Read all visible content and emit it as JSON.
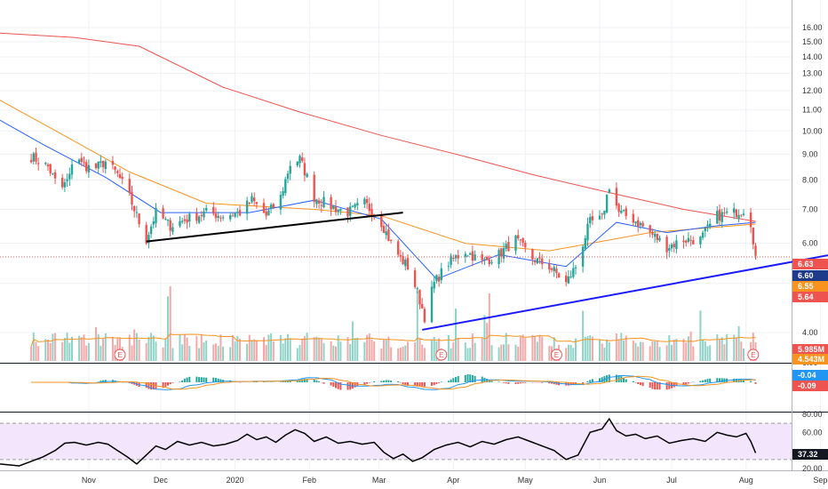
{
  "chart_data": [
    {
      "type": "candlestick",
      "panel": "price",
      "yscale": "log",
      "ylim": [
        3.6,
        16.8
      ],
      "y_ticks": [
        "16.00",
        "15.00",
        "14.00",
        "13.00",
        "12.00",
        "11.00",
        "10.00",
        "9.00",
        "8.00",
        "7.00",
        "6.00",
        "5.00",
        "4.00"
      ],
      "x_ticks": [
        "Nov",
        "Dec",
        "2020",
        "Feb",
        "Mar",
        "Apr",
        "May",
        "Jun",
        "Jul",
        "Aug",
        "Sep"
      ],
      "grid": true,
      "close_trajectory": [
        [
          "2019-10-08",
          8.9
        ],
        [
          "2019-10-15",
          8.5
        ],
        [
          "2019-10-20",
          7.6
        ],
        [
          "2019-10-24",
          8.1
        ],
        [
          "2019-10-26",
          9.3
        ],
        [
          "2019-10-29",
          8.6
        ],
        [
          "2019-11-03",
          8.4
        ],
        [
          "2019-11-08",
          8.7
        ],
        [
          "2019-11-13",
          8.2
        ],
        [
          "2019-11-18",
          7.4
        ],
        [
          "2019-11-22",
          6.6
        ],
        [
          "2019-11-25",
          6.1
        ],
        [
          "2019-11-29",
          6.9
        ],
        [
          "2019-12-05",
          6.5
        ],
        [
          "2019-12-12",
          6.7
        ],
        [
          "2019-12-20",
          6.9
        ],
        [
          "2019-12-27",
          6.8
        ],
        [
          "2020-01-03",
          6.9
        ],
        [
          "2020-01-08",
          7.3
        ],
        [
          "2020-01-14",
          6.8
        ],
        [
          "2020-01-20",
          7.4
        ],
        [
          "2020-01-24",
          8.6
        ],
        [
          "2020-01-28",
          8.8
        ],
        [
          "2020-02-03",
          7.4
        ],
        [
          "2020-02-10",
          7.1
        ],
        [
          "2020-02-17",
          6.9
        ],
        [
          "2020-02-24",
          7.2
        ],
        [
          "2020-03-02",
          6.6
        ],
        [
          "2020-03-06",
          6.0
        ],
        [
          "2020-03-10",
          5.6
        ],
        [
          "2020-03-13",
          5.4
        ],
        [
          "2020-03-17",
          4.8
        ],
        [
          "2020-03-20",
          4.3
        ],
        [
          "2020-03-24",
          5.0
        ],
        [
          "2020-03-30",
          5.5
        ],
        [
          "2020-04-06",
          5.8
        ],
        [
          "2020-04-13",
          5.5
        ],
        [
          "2020-04-20",
          5.7
        ],
        [
          "2020-04-27",
          6.1
        ],
        [
          "2020-05-04",
          5.6
        ],
        [
          "2020-05-11",
          5.4
        ],
        [
          "2020-05-18",
          5.0
        ],
        [
          "2020-05-22",
          5.4
        ],
        [
          "2020-05-28",
          6.6
        ],
        [
          "2020-06-02",
          6.7
        ],
        [
          "2020-06-05",
          7.8
        ],
        [
          "2020-06-09",
          6.9
        ],
        [
          "2020-06-15",
          6.7
        ],
        [
          "2020-06-22",
          6.3
        ],
        [
          "2020-06-29",
          5.9
        ],
        [
          "2020-07-06",
          6.1
        ],
        [
          "2020-07-13",
          6.1
        ],
        [
          "2020-07-20",
          6.8
        ],
        [
          "2020-07-27",
          6.9
        ],
        [
          "2020-07-31",
          7.0
        ],
        [
          "2020-08-03",
          6.6
        ],
        [
          "2020-08-05",
          5.64
        ]
      ],
      "moving_averages": [
        {
          "color": "#ef5350",
          "label": "6.63",
          "values": [
            [
              "2019-09-25",
              15.6
            ],
            [
              "2019-10-26",
              15.3
            ],
            [
              "2019-11-22",
              14.7
            ],
            [
              "2019-12-27",
              12.2
            ],
            [
              "2020-01-28",
              10.9
            ],
            [
              "2020-03-02",
              9.8
            ],
            [
              "2020-04-06",
              8.9
            ],
            [
              "2020-05-04",
              8.2
            ],
            [
              "2020-06-08",
              7.5
            ],
            [
              "2020-07-06",
              7.0
            ],
            [
              "2020-08-05",
              6.63
            ]
          ]
        },
        {
          "color": "#f7931e",
          "label": "6.55",
          "values": [
            [
              "2019-09-25",
              11.5
            ],
            [
              "2019-10-20",
              9.9
            ],
            [
              "2019-11-18",
              8.3
            ],
            [
              "2019-12-20",
              7.2
            ],
            [
              "2020-02-03",
              7.0
            ],
            [
              "2020-03-02",
              6.8
            ],
            [
              "2020-04-06",
              6.0
            ],
            [
              "2020-05-11",
              5.8
            ],
            [
              "2020-06-22",
              6.3
            ],
            [
              "2020-07-27",
              6.5
            ],
            [
              "2020-08-05",
              6.55
            ]
          ]
        },
        {
          "color": "#2962ff",
          "label": "6.60",
          "values": [
            [
              "2019-09-25",
              10.5
            ],
            [
              "2019-10-13",
              9.4
            ],
            [
              "2019-11-08",
              8.1
            ],
            [
              "2019-12-01",
              6.9
            ],
            [
              "2020-01-07",
              6.9
            ],
            [
              "2020-02-03",
              7.3
            ],
            [
              "2020-03-02",
              6.7
            ],
            [
              "2020-03-25",
              5.1
            ],
            [
              "2020-04-20",
              5.7
            ],
            [
              "2020-05-18",
              5.4
            ],
            [
              "2020-06-08",
              6.6
            ],
            [
              "2020-06-29",
              6.3
            ],
            [
              "2020-07-20",
              6.5
            ],
            [
              "2020-08-05",
              6.6
            ]
          ]
        }
      ],
      "trendlines": [
        {
          "color": "#000000",
          "from": [
            "2019-11-25",
            6.05
          ],
          "to": [
            "2020-03-11",
            6.9
          ]
        },
        {
          "color": "#1a1aff",
          "from": [
            "2020-03-19",
            4.05
          ],
          "to": [
            "2020-09-10",
            5.75
          ]
        }
      ],
      "price_line": 5.64,
      "price_badges": [
        {
          "label": "6.63",
          "color": "#ef5350"
        },
        {
          "label": "6.60",
          "color": "#1e3a8a"
        },
        {
          "label": "6.55",
          "color": "#f7931e"
        },
        {
          "label": "5.64",
          "color": "#ef5350"
        }
      ],
      "volume_badges": [
        {
          "label": "5.985M",
          "color": "#ef5350"
        },
        {
          "label": "4.543M",
          "color": "#f7931e"
        }
      ],
      "earnings_markers": [
        {
          "date": "2019-11-14",
          "label": "E"
        },
        {
          "date": "2020-03-27",
          "label": "E"
        },
        {
          "date": "2020-05-14",
          "label": "E"
        },
        {
          "date": "2020-08-04",
          "label": "E"
        }
      ]
    },
    {
      "type": "line",
      "panel": "macd",
      "y_ticks": [
        "0.00"
      ],
      "lines": [
        {
          "name": "",
          "color": "#2196f3"
        },
        {
          "name": "",
          "color": "#f7931e"
        }
      ],
      "badges": [
        {
          "label": "-0.04",
          "color": "#2196f3"
        },
        {
          "label": "-0.09",
          "color": "#ef5350"
        }
      ]
    },
    {
      "type": "line",
      "panel": "rsi",
      "ylim": [
        15,
        85
      ],
      "y_ticks": [
        "80.00",
        "60.00",
        "20.00"
      ],
      "band": [
        30,
        70
      ],
      "values": [
        [
          "2019-09-25",
          25
        ],
        [
          "2019-10-03",
          23
        ],
        [
          "2019-10-08",
          28
        ],
        [
          "2019-10-13",
          33
        ],
        [
          "2019-10-18",
          40
        ],
        [
          "2019-10-22",
          48
        ],
        [
          "2019-10-26",
          49
        ],
        [
          "2019-10-31",
          46
        ],
        [
          "2019-11-05",
          49
        ],
        [
          "2019-11-09",
          47
        ],
        [
          "2019-11-13",
          40
        ],
        [
          "2019-11-17",
          33
        ],
        [
          "2019-11-21",
          25
        ],
        [
          "2019-11-25",
          35
        ],
        [
          "2019-11-29",
          45
        ],
        [
          "2019-12-03",
          41
        ],
        [
          "2019-12-08",
          50
        ],
        [
          "2019-12-13",
          46
        ],
        [
          "2019-12-18",
          49
        ],
        [
          "2019-12-23",
          45
        ],
        [
          "2019-12-28",
          47
        ],
        [
          "2020-01-02",
          51
        ],
        [
          "2020-01-06",
          58
        ],
        [
          "2020-01-10",
          52
        ],
        [
          "2020-01-14",
          55
        ],
        [
          "2020-01-18",
          49
        ],
        [
          "2020-01-22",
          57
        ],
        [
          "2020-01-26",
          63
        ],
        [
          "2020-01-30",
          59
        ],
        [
          "2020-02-03",
          50
        ],
        [
          "2020-02-08",
          55
        ],
        [
          "2020-02-13",
          48
        ],
        [
          "2020-02-18",
          50
        ],
        [
          "2020-02-23",
          47
        ],
        [
          "2020-02-28",
          49
        ],
        [
          "2020-03-03",
          38
        ],
        [
          "2020-03-07",
          31
        ],
        [
          "2020-03-11",
          36
        ],
        [
          "2020-03-15",
          28
        ],
        [
          "2020-03-19",
          32
        ],
        [
          "2020-03-24",
          41
        ],
        [
          "2020-03-29",
          46
        ],
        [
          "2020-04-03",
          49
        ],
        [
          "2020-04-08",
          44
        ],
        [
          "2020-04-13",
          50
        ],
        [
          "2020-04-18",
          47
        ],
        [
          "2020-04-23",
          52
        ],
        [
          "2020-04-28",
          55
        ],
        [
          "2020-05-03",
          50
        ],
        [
          "2020-05-08",
          45
        ],
        [
          "2020-05-13",
          40
        ],
        [
          "2020-05-18",
          30
        ],
        [
          "2020-05-23",
          35
        ],
        [
          "2020-05-28",
          60
        ],
        [
          "2020-06-02",
          64
        ],
        [
          "2020-06-05",
          75
        ],
        [
          "2020-06-08",
          62
        ],
        [
          "2020-06-12",
          56
        ],
        [
          "2020-06-16",
          58
        ],
        [
          "2020-06-20",
          53
        ],
        [
          "2020-06-25",
          56
        ],
        [
          "2020-06-30",
          48
        ],
        [
          "2020-07-05",
          51
        ],
        [
          "2020-07-10",
          53
        ],
        [
          "2020-07-15",
          50
        ],
        [
          "2020-07-20",
          60
        ],
        [
          "2020-07-24",
          57
        ],
        [
          "2020-07-28",
          55
        ],
        [
          "2020-08-01",
          59
        ],
        [
          "2020-08-03",
          50
        ],
        [
          "2020-08-05",
          37.32
        ]
      ],
      "badge": {
        "label": "37.32",
        "color": "#131722"
      }
    }
  ]
}
